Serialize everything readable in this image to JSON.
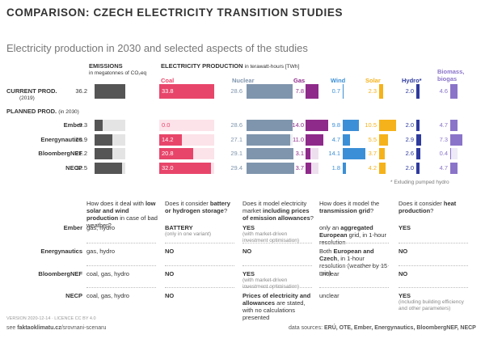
{
  "title": "COMPARISON: CZECH ELECTRICITY TRANSITION STUDIES",
  "subtitle": "Electricity production in 2030 and selected aspects of the studies",
  "production": {
    "emissions_header": "EMISSIONS",
    "emissions_unit": "in megatonnes of CO₂eq",
    "emissions_color": "#555555",
    "production_header": "ELECTRICITY PRODUCTION",
    "production_unit": "in terawatt-hours [TWh]",
    "sources": [
      {
        "name": "Coal",
        "color": "#e8456a"
      },
      {
        "name": "Nuclear",
        "color": "#7f95ad"
      },
      {
        "name": "Gas",
        "color": "#8e2a8a"
      },
      {
        "name": "Wind",
        "color": "#3b8fd6"
      },
      {
        "name": "Solar",
        "color": "#f5b21a"
      },
      {
        "name": "Hydro*",
        "color": "#2f3b9e"
      },
      {
        "name": "Biomass, biogas",
        "color": "#8a74c9"
      }
    ],
    "current": {
      "label": "CURRENT PROD.",
      "sublabel": "(2019)",
      "emissions": 36.2,
      "emissions_label": "36.2",
      "values": [
        33.8,
        28.6,
        7.8,
        0.7,
        2.3,
        2.0,
        4.6
      ],
      "value_labels": [
        "33.8",
        "28.6",
        "7.8",
        "0.7",
        "2.3",
        "2.0",
        "4.6"
      ]
    },
    "planned_label": "PLANNED PROD.",
    "planned_sublabel": "(in 2030)",
    "scenarios": [
      {
        "name": "Ember",
        "emissions": 9.3,
        "emissions_label": "9.3",
        "values": [
          0.0,
          28.6,
          14.0,
          9.8,
          10.5,
          2.0,
          4.7
        ],
        "value_labels": [
          "0.0",
          "28.6",
          "14.0",
          "9.8",
          "10.5",
          "2.0",
          "4.7"
        ]
      },
      {
        "name": "Energynautics",
        "emissions": 20.9,
        "emissions_label": "20.9",
        "values": [
          14.2,
          27.1,
          11.0,
          4.7,
          5.5,
          2.9,
          7.3
        ],
        "value_labels": [
          "14.2",
          "27.1",
          "11.0",
          "4.7",
          "5.5",
          "2.9",
          "7.3"
        ]
      },
      {
        "name": "BloombergNEF",
        "emissions": 21.2,
        "emissions_label": "21.2",
        "values": [
          20.8,
          29.1,
          3.1,
          14.1,
          3.7,
          2.6,
          0.4
        ],
        "value_labels": [
          "20.8",
          "29.1",
          "3.1",
          "14.1",
          "3.7",
          "2.6",
          "0.4"
        ]
      },
      {
        "name": "NECP",
        "emissions": 32.5,
        "emissions_label": "32.5",
        "values": [
          32.0,
          29.4,
          3.7,
          1.8,
          4.2,
          2.0,
          4.7
        ],
        "value_labels": [
          "32.0",
          "29.4",
          "3.7",
          "1.8",
          "4.2",
          "2.0",
          "4.7"
        ]
      }
    ],
    "footnote": "* Exluding pumped hydro"
  },
  "questions": {
    "headers": [
      [
        {
          "text": "How does it deal with "
        },
        {
          "text": "low solar and wind production",
          "bold": true
        },
        {
          "text": " in case of bad weather?"
        }
      ],
      [
        {
          "text": "Does it consider "
        },
        {
          "text": "battery or hydrogen storage",
          "bold": true
        },
        {
          "text": "?"
        }
      ],
      [
        {
          "text": "Does it model electricity market "
        },
        {
          "text": "including prices of emission allowances",
          "bold": true
        },
        {
          "text": "?"
        }
      ],
      [
        {
          "text": "How does it model the "
        },
        {
          "text": "transmission grid",
          "bold": true
        },
        {
          "text": "?"
        }
      ],
      [
        {
          "text": "Does it consider "
        },
        {
          "text": "heat production",
          "bold": true
        },
        {
          "text": "?"
        }
      ]
    ],
    "rows": [
      {
        "name": "Ember",
        "cells": [
          [
            {
              "text": "gas, hydro"
            }
          ],
          [
            {
              "text": "BATTERY",
              "bold": true
            },
            {
              "text": "(only in one variant)",
              "note": true
            }
          ],
          [
            {
              "text": "YES",
              "bold": true
            },
            {
              "text": "(with market-driven investment optimisation)",
              "note": true
            }
          ],
          [
            {
              "text": "only an "
            },
            {
              "text": "aggregated European",
              "bold": true
            },
            {
              "text": " grid, in 1-hour resolution"
            }
          ],
          [
            {
              "text": "YES",
              "bold": true
            }
          ]
        ]
      },
      {
        "name": "Energynautics",
        "cells": [
          [
            {
              "text": "gas, hydro"
            }
          ],
          [
            {
              "text": "NO",
              "bold": true
            }
          ],
          [
            {
              "text": "NO",
              "bold": true
            }
          ],
          [
            {
              "text": "Both "
            },
            {
              "text": "European and Czech",
              "bold": true
            },
            {
              "text": ", in 1-hour resolution (weather by 15 min)"
            }
          ],
          [
            {
              "text": "NO",
              "bold": true
            }
          ]
        ]
      },
      {
        "name": "BloombergNEF",
        "cells": [
          [
            {
              "text": "coal, gas, hydro"
            }
          ],
          [
            {
              "text": "NO",
              "bold": true
            }
          ],
          [
            {
              "text": "YES",
              "bold": true
            },
            {
              "text": "(with market-driven investment optimisation)",
              "note": true
            }
          ],
          [
            {
              "text": "unclear"
            }
          ],
          [
            {
              "text": "NO",
              "bold": true
            }
          ]
        ]
      },
      {
        "name": "NECP",
        "cells": [
          [
            {
              "text": "coal, gas, hydro"
            }
          ],
          [
            {
              "text": "NO",
              "bold": true
            }
          ],
          [
            {
              "text": "Prices of electricity and allowances",
              "bold": true
            },
            {
              "text": " are stated, with no calculations presented"
            }
          ],
          [
            {
              "text": "unclear"
            }
          ],
          [
            {
              "text": "YES",
              "bold": true
            },
            {
              "text": "(including building efficiency and other parameters)",
              "note": true
            }
          ]
        ]
      }
    ]
  },
  "footer": {
    "version": "VERSION 2020-12-14 · LICENCE CC BY 4.0",
    "link": [
      {
        "text": "see "
      },
      {
        "text": "faktaoklimatu.cz",
        "bold": true
      },
      {
        "text": "/srovnani-scenaru"
      }
    ],
    "sources": [
      {
        "text": "data sources: "
      },
      {
        "text": "ERÚ, OTE, Ember, Energynautics, BloombergNEF, NECP",
        "bold": true
      }
    ]
  }
}
